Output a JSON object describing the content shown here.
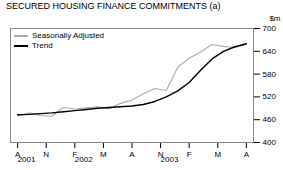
{
  "chart_data": {
    "type": "line",
    "title": "SECURED HOUSING FINANCE COMMITMENTS (a)",
    "ylabel": "$m",
    "x": [
      0,
      0.8,
      1.6,
      2.4,
      3.2,
      4,
      4.8,
      5.6,
      6.4,
      7.2,
      8,
      8.8,
      9.6,
      10.4,
      11.2,
      12,
      12.8,
      13.6,
      14.4,
      15.2,
      16
    ],
    "series": [
      {
        "name": "Seasonally Adjusted",
        "color": "#aaaaaa",
        "values": [
          470,
          478,
          471,
          469,
          492,
          488,
          491,
          494,
          489,
          503,
          512,
          528,
          542,
          537,
          598,
          622,
          638,
          658,
          653,
          650,
          658
        ]
      },
      {
        "name": "Trend",
        "color": "#000000",
        "values": [
          473,
          474,
          476,
          478,
          481,
          484,
          487,
          490,
          492,
          494,
          496,
          500,
          508,
          520,
          536,
          558,
          590,
          620,
          640,
          652,
          660
        ]
      }
    ],
    "xlim": [
      -0.5,
      16.5
    ],
    "xticks": [
      {
        "value": 0,
        "label": "A"
      },
      {
        "value": 2,
        "label": "N"
      },
      {
        "value": 4,
        "label": "F"
      },
      {
        "value": 6,
        "label": "M"
      },
      {
        "value": 8,
        "label": "A"
      },
      {
        "value": 10,
        "label": "N"
      },
      {
        "value": 12,
        "label": "F"
      },
      {
        "value": 14,
        "label": "M"
      },
      {
        "value": 16,
        "label": "A"
      }
    ],
    "ylim": [
      400,
      700
    ],
    "yticks": [
      400,
      460,
      520,
      580,
      640,
      700
    ],
    "annotations": [
      {
        "text": "2001",
        "x": 0
      },
      {
        "text": "2002",
        "x": 4
      },
      {
        "text": "2003",
        "x": 10
      }
    ],
    "legend": "upper left",
    "grid": false
  }
}
